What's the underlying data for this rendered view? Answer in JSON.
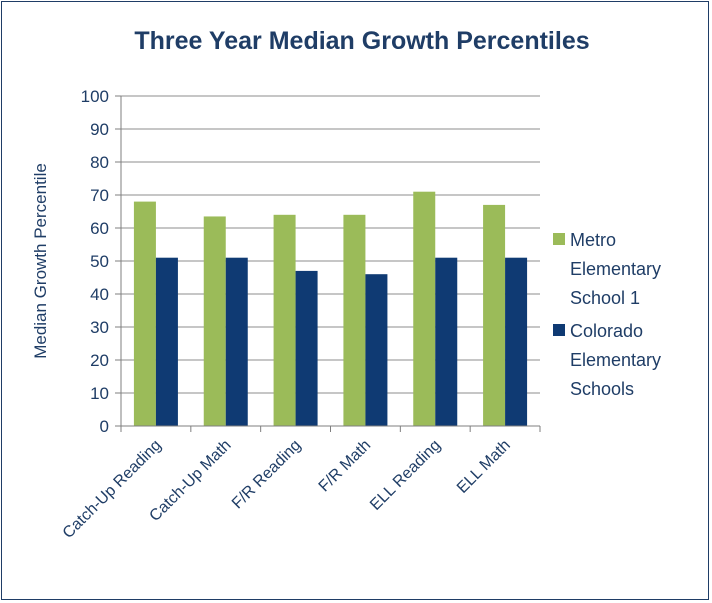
{
  "chart_data": {
    "type": "bar",
    "title": "Three Year Median Growth Percentiles",
    "xlabel": "",
    "ylabel": "Median Growth Percentile",
    "ylim": [
      0,
      100
    ],
    "yticks": [
      0,
      10,
      20,
      30,
      40,
      50,
      60,
      70,
      80,
      90,
      100
    ],
    "grid": true,
    "legend_position": "right",
    "categories": [
      "Catch-Up Reading",
      "Catch-Up Math",
      "F/R Reading",
      "F/R Math",
      "ELL Reading",
      "ELL Math"
    ],
    "series": [
      {
        "name": "Metro Elementary School 1",
        "legend_lines": [
          "Metro",
          "Elementary",
          "School 1"
        ],
        "color": "#9bbb59",
        "values": [
          68,
          63.5,
          64,
          64,
          71,
          67
        ]
      },
      {
        "name": "Colorado Elementary Schools",
        "legend_lines": [
          "Colorado",
          "Elementary",
          "Schools"
        ],
        "color": "#0f3a73",
        "values": [
          51,
          51,
          47,
          46,
          51,
          51
        ]
      }
    ]
  }
}
